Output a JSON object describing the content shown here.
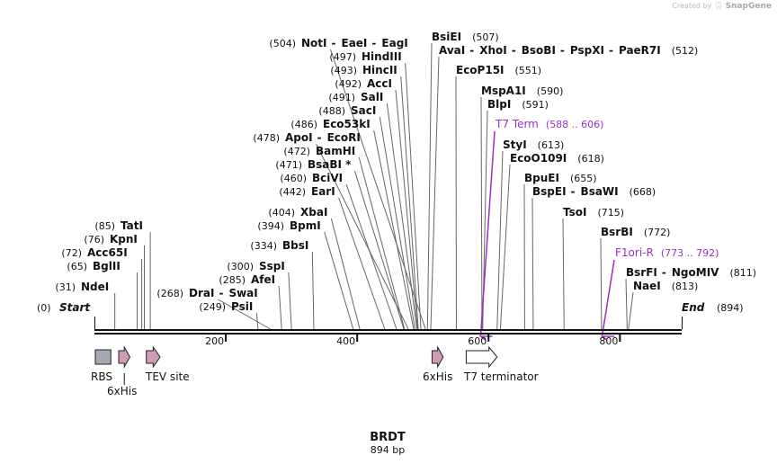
{
  "brand": {
    "prefix": "Created by",
    "name": "SnapGene"
  },
  "title": "BRDT",
  "subtitle": "894 bp",
  "total_bp": 894,
  "start_label": "Start",
  "start_pos": "(0)",
  "end_label": "End",
  "end_pos": "(894)",
  "ticks": [
    {
      "bp": 200,
      "label": "200"
    },
    {
      "bp": 400,
      "label": "400"
    },
    {
      "bp": 600,
      "label": "600"
    },
    {
      "bp": 800,
      "label": "800"
    }
  ],
  "sites": [
    {
      "bp": 31,
      "pos": "(31)",
      "names": [
        "NdeI"
      ]
    },
    {
      "bp": 65,
      "pos": "(65)",
      "names": [
        "BglII"
      ]
    },
    {
      "bp": 72,
      "pos": "(72)",
      "names": [
        "Acc65I"
      ]
    },
    {
      "bp": 76,
      "pos": "(76)",
      "names": [
        "KpnI"
      ]
    },
    {
      "bp": 85,
      "pos": "(85)",
      "names": [
        "TatI"
      ]
    },
    {
      "bp": 249,
      "pos": "(249)",
      "names": [
        "PsiI"
      ]
    },
    {
      "bp": 268,
      "pos": "(268)",
      "names": [
        "DraI",
        "SwaI"
      ]
    },
    {
      "bp": 285,
      "pos": "(285)",
      "names": [
        "AfeI"
      ]
    },
    {
      "bp": 300,
      "pos": "(300)",
      "names": [
        "SspI"
      ]
    },
    {
      "bp": 334,
      "pos": "(334)",
      "names": [
        "BbsI"
      ]
    },
    {
      "bp": 394,
      "pos": "(394)",
      "names": [
        "BpmI"
      ]
    },
    {
      "bp": 404,
      "pos": "(404)",
      "names": [
        "XbaI"
      ]
    },
    {
      "bp": 442,
      "pos": "(442)",
      "names": [
        "EarI"
      ]
    },
    {
      "bp": 460,
      "pos": "(460)",
      "names": [
        "BciVI"
      ]
    },
    {
      "bp": 471,
      "pos": "(471)",
      "names": [
        "BsaBI *"
      ]
    },
    {
      "bp": 472,
      "pos": "(472)",
      "names": [
        "BamHI"
      ]
    },
    {
      "bp": 478,
      "pos": "(478)",
      "names": [
        "ApoI",
        "EcoRI"
      ]
    },
    {
      "bp": 486,
      "pos": "(486)",
      "names": [
        "Eco53kI"
      ]
    },
    {
      "bp": 488,
      "pos": "(488)",
      "names": [
        "SacI"
      ]
    },
    {
      "bp": 491,
      "pos": "(491)",
      "names": [
        "SalI"
      ]
    },
    {
      "bp": 492,
      "pos": "(492)",
      "names": [
        "AccI"
      ]
    },
    {
      "bp": 493,
      "pos": "(493)",
      "names": [
        "HincII"
      ]
    },
    {
      "bp": 497,
      "pos": "(497)",
      "names": [
        "HindIII"
      ]
    },
    {
      "bp": 504,
      "pos": "(504)",
      "names": [
        "NotI",
        "EaeI",
        "EagI"
      ]
    },
    {
      "bp": 507,
      "pos": "(507)",
      "names": [
        "BsiEI"
      ]
    },
    {
      "bp": 512,
      "pos": "(512)",
      "names": [
        "AvaI",
        "XhoI",
        "BsoBI",
        "PspXI",
        "PaeR7I"
      ]
    },
    {
      "bp": 551,
      "pos": "(551)",
      "names": [
        "EcoP15I"
      ]
    },
    {
      "bp": 590,
      "pos": "(590)",
      "names": [
        "MspA1I"
      ]
    },
    {
      "bp": 591,
      "pos": "(591)",
      "names": [
        "BlpI"
      ]
    },
    {
      "bp": 613,
      "pos": "(613)",
      "names": [
        "StyI"
      ]
    },
    {
      "bp": 618,
      "pos": "(618)",
      "names": [
        "EcoO109I"
      ]
    },
    {
      "bp": 655,
      "pos": "(655)",
      "names": [
        "BpuEI"
      ]
    },
    {
      "bp": 668,
      "pos": "(668)",
      "names": [
        "BspEI",
        "BsaWI"
      ]
    },
    {
      "bp": 715,
      "pos": "(715)",
      "names": [
        "TsoI"
      ]
    },
    {
      "bp": 772,
      "pos": "(772)",
      "names": [
        "BsrBI"
      ]
    },
    {
      "bp": 811,
      "pos": "(811)",
      "names": [
        "BsrFI",
        "NgoMIV"
      ]
    },
    {
      "bp": 813,
      "pos": "(813)",
      "names": [
        "NaeI"
      ]
    }
  ],
  "primers": [
    {
      "name": "T7 Term",
      "range": "(588 .. 606)",
      "start_bp": 588,
      "end_bp": 606,
      "direction": "reverse",
      "color": "#9b30c8"
    },
    {
      "name": "F1ori-R",
      "range": "(773 .. 792)",
      "start_bp": 773,
      "end_bp": 792,
      "direction": "reverse",
      "color": "#9b30c8"
    }
  ],
  "features": [
    {
      "name": "RBS",
      "start_bp": 0,
      "end_bp": 25,
      "shape": "box",
      "color": "#a5a9b3"
    },
    {
      "name": "6xHis",
      "start_bp": 37,
      "end_bp": 54,
      "shape": "arrow",
      "color": "#cf9cb6"
    },
    {
      "name": "TEV site",
      "start_bp": 79,
      "end_bp": 100,
      "shape": "arrow",
      "color": "#cf9cb6"
    },
    {
      "name": "6xHis",
      "start_bp": 514,
      "end_bp": 531,
      "shape": "arrow",
      "color": "#cf9cb6"
    },
    {
      "name": "T7 terminator",
      "start_bp": 566,
      "end_bp": 613,
      "shape": "arrow",
      "color": "#ffffff"
    }
  ]
}
